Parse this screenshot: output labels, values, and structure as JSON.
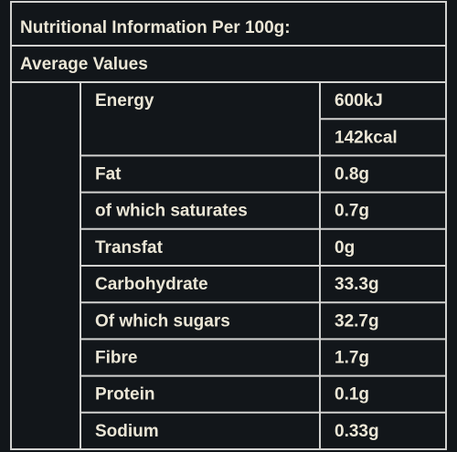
{
  "header": {
    "title": "Nutritional Information Per 100g:"
  },
  "table": {
    "subtitle": "Average Values",
    "rows": [
      {
        "nutrient": "Energy",
        "amounts": [
          "600kJ",
          "142kcal"
        ]
      },
      {
        "nutrient": "Fat",
        "amounts": [
          "0.8g"
        ]
      },
      {
        "nutrient": "of which saturates",
        "amounts": [
          "0.7g"
        ]
      },
      {
        "nutrient": "Transfat",
        "amounts": [
          "0g"
        ]
      },
      {
        "nutrient": "Carbohydrate",
        "amounts": [
          "33.3g"
        ]
      },
      {
        "nutrient": "Of which sugars",
        "amounts": [
          "32.7g"
        ]
      },
      {
        "nutrient": "Fibre",
        "amounts": [
          "1.7g"
        ]
      },
      {
        "nutrient": "Protein",
        "amounts": [
          "0.1g"
        ]
      },
      {
        "nutrient": "Sodium",
        "amounts": [
          "0.33g"
        ]
      }
    ]
  }
}
